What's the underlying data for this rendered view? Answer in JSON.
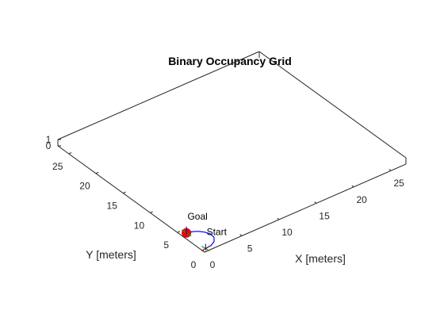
{
  "chart_data": {
    "type": "line",
    "title": "Binary Occupancy Grid",
    "xlabel": "X [meters]",
    "ylabel": "Y [meters]",
    "xlim": [
      0,
      27
    ],
    "ylim": [
      0,
      27
    ],
    "zlim": [
      0,
      1
    ],
    "xticks": [
      "0",
      "5",
      "10",
      "15",
      "20",
      "25"
    ],
    "yticks": [
      "0",
      "5",
      "10",
      "15",
      "20",
      "25"
    ],
    "zticks": [
      "0",
      "1"
    ],
    "grid": false,
    "annotations": [
      {
        "text": "Start",
        "x": 0.5,
        "y": 0.5,
        "z": 0
      },
      {
        "text": "Goal",
        "x": 0.7,
        "y": 4.3,
        "z": 0
      }
    ],
    "series": [
      {
        "type": "path",
        "color": "#0000ff",
        "x": [
          0.5,
          1.3,
          2.0,
          2.5,
          2.6,
          2.3,
          1.8,
          1.1,
          0.7
        ],
        "y": [
          0.5,
          0.6,
          1.0,
          1.7,
          2.5,
          3.2,
          3.8,
          4.2,
          4.3
        ]
      }
    ],
    "markers": [
      {
        "type": "start",
        "x": 0.5,
        "y": 0.5,
        "color": "#00aa00"
      },
      {
        "type": "goal",
        "x": 0.7,
        "y": 4.3,
        "color": "#ff0000"
      }
    ]
  }
}
